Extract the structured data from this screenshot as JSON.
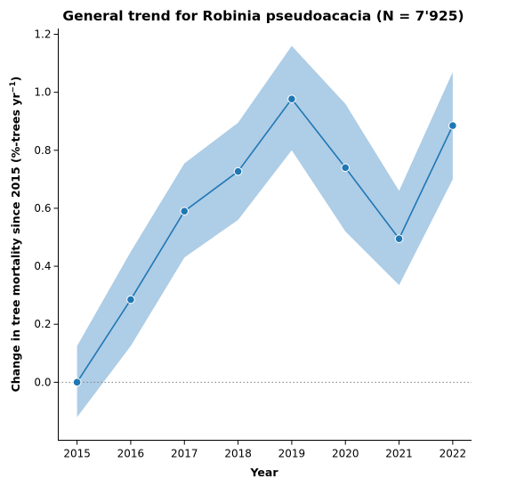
{
  "chart_data": {
    "type": "line",
    "title": "General trend for Robinia pseudoacacia  (N = 7'925)",
    "xlabel": "Year",
    "ylabel": "Change in tree mortality since 2015 (%-trees yr",
    "ylabel_superscript": "−1",
    "ylabel_suffix": ")",
    "x": [
      2015,
      2016,
      2017,
      2018,
      2019,
      2020,
      2021,
      2022
    ],
    "x_tick_labels": [
      "2015",
      "2016",
      "2017",
      "2018",
      "2019",
      "2020",
      "2021",
      "2022"
    ],
    "y_tick_values": [
      0.0,
      0.2,
      0.4,
      0.6,
      0.8,
      1.0,
      1.2
    ],
    "y_tick_labels": [
      "0.0",
      "0.2",
      "0.4",
      "0.6",
      "0.8",
      "1.0",
      "1.2"
    ],
    "xlim": [
      2014.65,
      2022.35
    ],
    "ylim": [
      -0.2,
      1.22
    ],
    "grid": false,
    "reference_line": {
      "y": 0.0,
      "style": "dotted",
      "color": "#808080"
    },
    "series": [
      {
        "values": [
          0.0,
          0.285,
          0.59,
          0.727,
          0.977,
          0.74,
          0.495,
          0.885
        ],
        "lower": [
          -0.12,
          0.125,
          0.43,
          0.56,
          0.8,
          0.52,
          0.335,
          0.7
        ],
        "upper": [
          0.125,
          0.45,
          0.755,
          0.895,
          1.16,
          0.96,
          0.66,
          1.07
        ],
        "color": "#1f77b4",
        "band_color": "#aecde6"
      }
    ]
  }
}
